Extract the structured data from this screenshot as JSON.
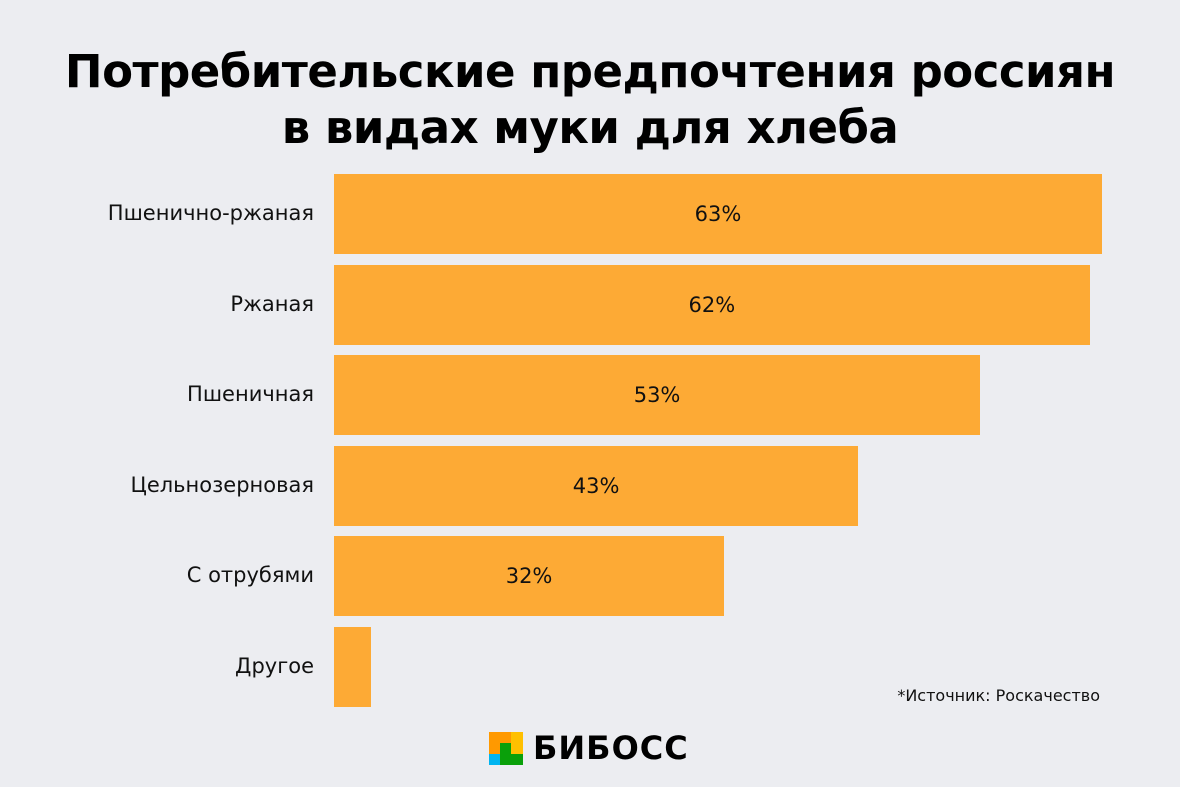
{
  "chart_data": {
    "type": "bar",
    "orientation": "horizontal",
    "title_lines": [
      "Потребительские предпочтения россиян",
      "в видах муки для хлеба"
    ],
    "categories": [
      "Пшенично-ржаная",
      "Ржаная",
      "Пшеничная",
      "Цельнозерновая",
      "С отрубями",
      "Другое"
    ],
    "values": [
      63,
      62,
      53,
      43,
      32,
      3
    ],
    "value_labels": [
      "63%",
      "62%",
      "53%",
      "43%",
      "32%",
      ""
    ],
    "xlim": [
      0,
      63
    ],
    "grid": false,
    "bar_color": "#fdaa35"
  },
  "source": "*Источник: Роскачество",
  "logo": {
    "text": "БИБОСС",
    "colors": [
      "#ff9900",
      "#ffc000",
      "#00b4f0",
      "#0aa00a"
    ]
  }
}
